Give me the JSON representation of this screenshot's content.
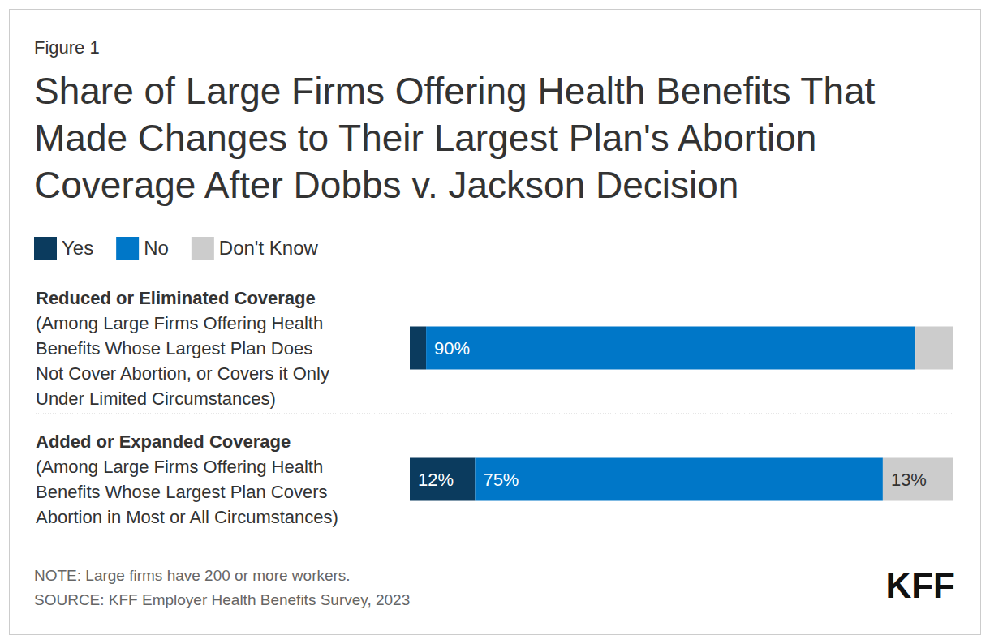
{
  "chart_data": {
    "type": "bar",
    "orientation": "horizontal",
    "stacked": true,
    "data_labels": true,
    "tick_labels": false,
    "grid": false,
    "figure_label": "Figure 1",
    "title": "Share of Large Firms Offering Health Benefits That Made Changes to Their Largest Plan's Abortion Coverage After Dobbs v. Jackson Decision",
    "categories": [
      "Reduced or Eliminated Coverage",
      "Added or Expanded Coverage"
    ],
    "category_notes": [
      [
        "(Among Large Firms Offering Health",
        "Benefits Whose Largest Plan Does",
        "Not Cover Abortion, or Covers it Only",
        "Under Limited Circumstances)"
      ],
      [
        "(Among Large Firms Offering Health",
        "Benefits Whose Largest Plan Covers",
        "Abortion in Most or All Circumstances)"
      ]
    ],
    "series": [
      {
        "name": "Yes",
        "color": "#0b3b5e",
        "values": [
          3,
          12
        ],
        "value_labels": [
          null,
          "12%"
        ]
      },
      {
        "name": "No",
        "color": "#0077c8",
        "values": [
          90,
          75
        ],
        "value_labels": [
          "90%",
          "75%"
        ]
      },
      {
        "name": "Don't Know",
        "color": "#cccccc",
        "values": [
          7,
          13
        ],
        "value_labels": [
          null,
          "13%"
        ]
      }
    ],
    "xlim": [
      0,
      100
    ],
    "notes": [
      "NOTE: Large firms have 200 or more workers.",
      "SOURCE: KFF Employer Health Benefits Survey, 2023"
    ],
    "brand": "KFF"
  }
}
